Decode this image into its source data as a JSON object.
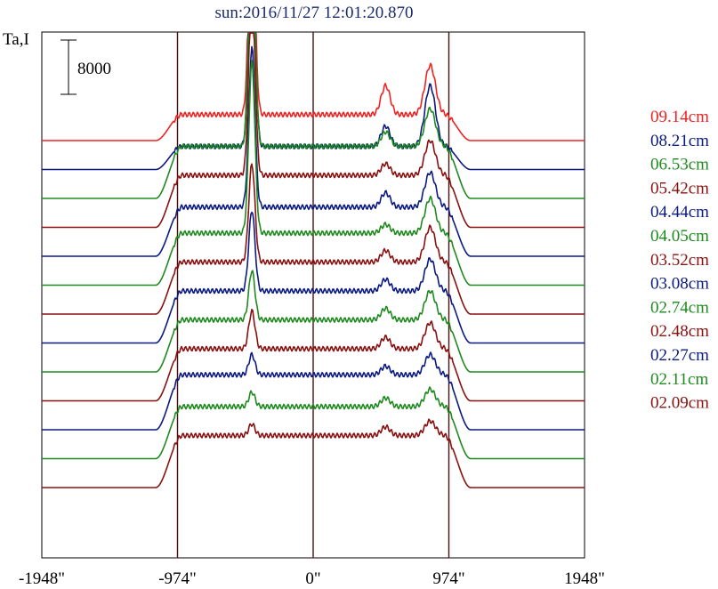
{
  "chart_data": {
    "type": "line",
    "title": "sun:2016/11/27 12:01:20.870",
    "ylabel": "Ta,I",
    "scale_bar_label": "8000",
    "x_ticks": [
      {
        "value": -1948,
        "label": "-1948\""
      },
      {
        "value": -974,
        "label": "-974\""
      },
      {
        "value": 0,
        "label": "0\""
      },
      {
        "value": 974,
        "label": "974\""
      },
      {
        "value": 1948,
        "label": "1948\""
      }
    ],
    "xlim": [
      -1948,
      1948
    ],
    "vertical_lines": [
      -974,
      0,
      974
    ],
    "grid": false,
    "legend_position": "right",
    "colors": {
      "red": "#ee2222",
      "navy": "#0a1a80",
      "green": "#1e8a1e",
      "maroon": "#8a1010",
      "axis": "#000000",
      "marker": "#4a1010",
      "title": "#1a2a6a"
    },
    "series": [
      {
        "name": "09.14cm",
        "color": "#ee2222",
        "baseline": 2,
        "plateau": 2.9,
        "flare": 10.4,
        "east_peak": 3.9,
        "west_peak": 4.6
      },
      {
        "name": "08.21cm",
        "color": "#0a1a80",
        "baseline": 1,
        "plateau": 1.8,
        "flare": 9.8,
        "east_peak": 2.5,
        "west_peak": 3.9
      },
      {
        "name": "06.53cm",
        "color": "#1e8a1e",
        "baseline": 0,
        "plateau": 1.8,
        "flare": 9.6,
        "east_peak": 2.3,
        "west_peak": 3.1
      },
      {
        "name": "05.42cm",
        "color": "#8a1010",
        "baseline": -1,
        "plateau": 0.8,
        "flare": 7.4,
        "east_peak": 1.2,
        "west_peak": 2.0
      },
      {
        "name": "04.44cm",
        "color": "#0a1a80",
        "baseline": -2,
        "plateau": -0.3,
        "flare": 5.2,
        "east_peak": 0.2,
        "west_peak": 0.9
      },
      {
        "name": "04.05cm",
        "color": "#1e8a1e",
        "baseline": -3,
        "plateau": -1.2,
        "flare": 4.7,
        "east_peak": -0.9,
        "west_peak": 0.0
      },
      {
        "name": "03.52cm",
        "color": "#8a1010",
        "baseline": -4,
        "plateau": -2.2,
        "flare": 1.2,
        "east_peak": -1.8,
        "west_peak": -1.0
      },
      {
        "name": "03.08cm",
        "color": "#0a1a80",
        "baseline": -5,
        "plateau": -3.2,
        "flare": -0.4,
        "east_peak": -2.8,
        "west_peak": -2.1
      },
      {
        "name": "02.74cm",
        "color": "#1e8a1e",
        "baseline": -6,
        "plateau": -4.2,
        "flare": -2.5,
        "east_peak": -3.8,
        "west_peak": -3.2
      },
      {
        "name": "02.48cm",
        "color": "#8a1010",
        "baseline": -7,
        "plateau": -5.2,
        "flare": -3.9,
        "east_peak": -4.8,
        "west_peak": -4.3
      },
      {
        "name": "02.27cm",
        "color": "#0a1a80",
        "baseline": -8,
        "plateau": -6.1,
        "flare": -5.4,
        "east_peak": -5.8,
        "west_peak": -5.4
      },
      {
        "name": "02.11cm",
        "color": "#1e8a1e",
        "baseline": -9,
        "plateau": -7.2,
        "flare": -6.7,
        "east_peak": -6.9,
        "west_peak": -6.6
      },
      {
        "name": "02.09cm",
        "color": "#8a1010",
        "baseline": -10,
        "plateau": -8.2,
        "flare": -7.8,
        "east_peak": -7.9,
        "west_peak": -7.7
      }
    ]
  }
}
